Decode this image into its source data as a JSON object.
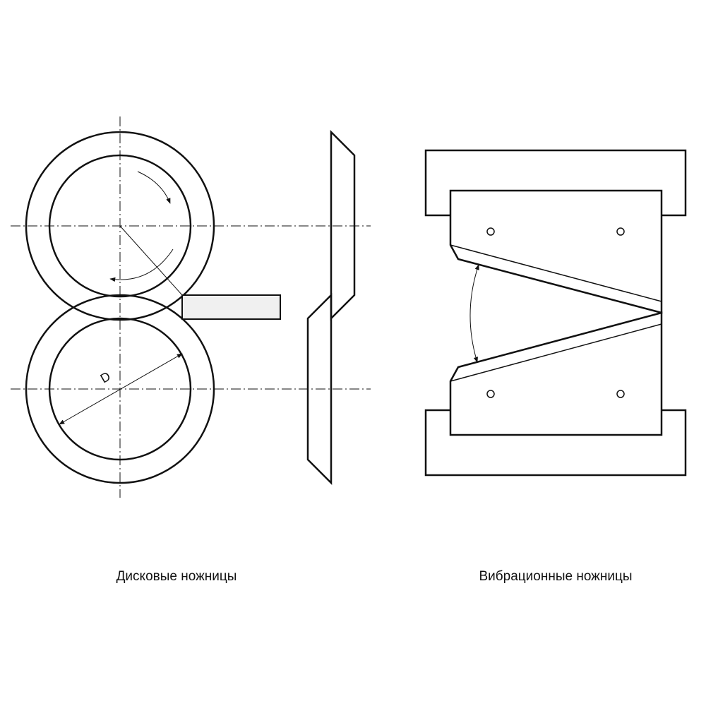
{
  "diagram": {
    "dimension_label": "D",
    "line_color": "#111111",
    "fill_color": "#f0f0f0",
    "background": "#ffffff"
  },
  "captions": {
    "disc_shears": "Дисковые ножницы",
    "vibration_shears": "Вибрационные ножницы"
  }
}
